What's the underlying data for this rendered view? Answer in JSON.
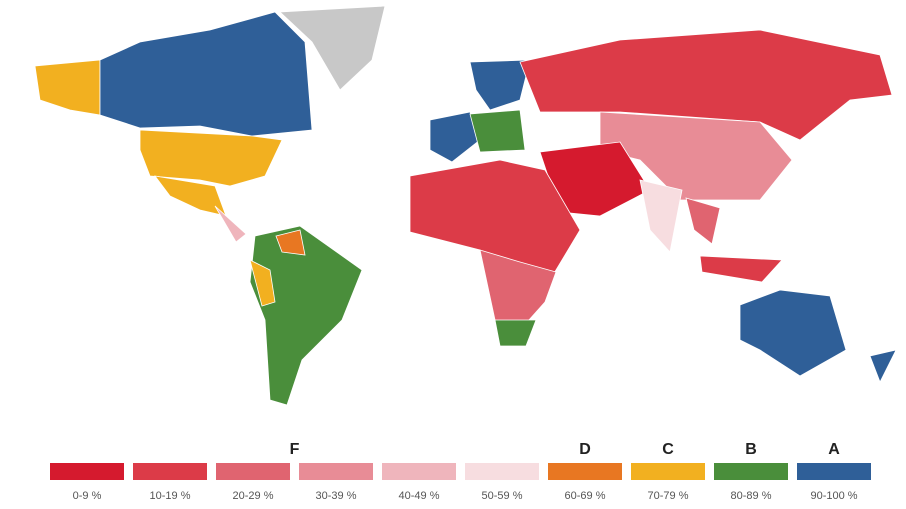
{
  "legend": {
    "grades": [
      {
        "label": "F",
        "from": 0,
        "to": 5
      },
      {
        "label": "D",
        "from": 6,
        "to": 6
      },
      {
        "label": "C",
        "from": 7,
        "to": 7
      },
      {
        "label": "B",
        "from": 8,
        "to": 8
      },
      {
        "label": "A",
        "from": 9,
        "to": 9
      }
    ],
    "bins": [
      {
        "label": "0-9 %",
        "color": "#d51a2e"
      },
      {
        "label": "10-19 %",
        "color": "#dc3b48"
      },
      {
        "label": "20-29 %",
        "color": "#e06470"
      },
      {
        "label": "30-39 %",
        "color": "#e88c96"
      },
      {
        "label": "40-49 %",
        "color": "#efb5bc"
      },
      {
        "label": "50-59 %",
        "color": "#f7dde0"
      },
      {
        "label": "60-69 %",
        "color": "#e87722"
      },
      {
        "label": "70-79 %",
        "color": "#f2b020"
      },
      {
        "label": "80-89 %",
        "color": "#4a8e3b"
      },
      {
        "label": "90-100 %",
        "color": "#2f5f98"
      }
    ]
  }
}
